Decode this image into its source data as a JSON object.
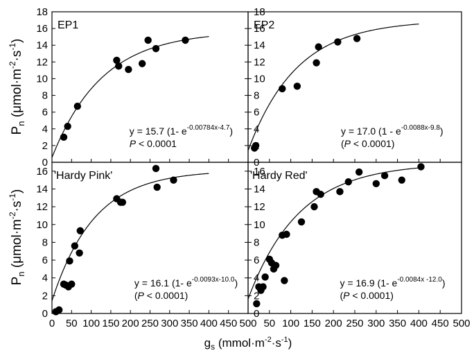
{
  "figure": {
    "xlabel_main": "g",
    "xlabel_sub": "s",
    "xlabel_unit": " (mmol·m",
    "xlabel_sup1": "-2",
    "xlabel_mid": "·s",
    "xlabel_sup2": "-1",
    "xlabel_close": ")",
    "ylabel_top": "P",
    "ylabel_top_sub": "n",
    "ylabel_top_unit": " (μmol·m",
    "ylabel_top_sup1": "-2",
    "ylabel_top_mid": "·s",
    "ylabel_top_sup2": "-1",
    "ylabel_top_close": ")",
    "ylabel_bottom": "P",
    "ylabel_bottom_sub": "n",
    "ylabel_bottom_unit": " (μmol·m",
    "ylabel_bottom_sup1": "-2",
    "ylabel_bottom_mid": "·s",
    "ylabel_bottom_sup2": "-1",
    "ylabel_bottom_close": ")",
    "x_ticks": [
      "0",
      "50",
      "100",
      "150",
      "200",
      "250",
      "300",
      "350",
      "400",
      "450",
      "500"
    ],
    "y_ticks": [
      "0",
      "2",
      "4",
      "6",
      "8",
      "10",
      "12",
      "14",
      "16",
      "18"
    ],
    "y_ticks_lower": [
      "0",
      "2",
      "4",
      "6",
      "8",
      "10",
      "12",
      "14",
      "16"
    ]
  },
  "chart_data": [
    {
      "type": "scatter",
      "panel": "EP1",
      "title": "EP1",
      "xlim": [
        0,
        500
      ],
      "ylim": [
        0,
        18
      ],
      "points": [
        [
          30,
          3.0
        ],
        [
          40,
          4.3
        ],
        [
          65,
          6.7
        ],
        [
          165,
          12.2
        ],
        [
          170,
          11.5
        ],
        [
          195,
          11.1
        ],
        [
          230,
          11.8
        ],
        [
          245,
          14.6
        ],
        [
          265,
          13.6
        ],
        [
          340,
          14.6
        ]
      ],
      "fit": {
        "a": 15.7,
        "b": 0.00784,
        "c": 4.7,
        "x_range": [
          0,
          400
        ]
      },
      "equation_pre": "y = 15.7 (1- e",
      "equation_exp": "-0.00784x-4.7",
      "equation_post": ")",
      "p_label": "P",
      "p_text": " < 0.0001"
    },
    {
      "type": "scatter",
      "panel": "EP2",
      "title": "EP2",
      "xlim": [
        0,
        500
      ],
      "ylim": [
        0,
        18
      ],
      "points": [
        [
          15,
          1.7
        ],
        [
          18,
          2.0
        ],
        [
          80,
          8.8
        ],
        [
          115,
          9.1
        ],
        [
          160,
          11.9
        ],
        [
          165,
          13.8
        ],
        [
          210,
          14.4
        ],
        [
          255,
          14.8
        ]
      ],
      "fit": {
        "a": 17.0,
        "b": 0.0088,
        "c": 9.8,
        "x_range": [
          0,
          400
        ]
      },
      "equation_pre": "y = 17.0 (1 - e",
      "equation_exp": "-0.0088x-9.8",
      "equation_post": ")",
      "p_label": "P",
      "p_text": " < 0.0001)",
      "p_open": "("
    },
    {
      "type": "scatter",
      "panel": "Hardy Pink",
      "title": "'Hardy Pink'",
      "xlim": [
        0,
        500
      ],
      "ylim": [
        0,
        17
      ],
      "points": [
        [
          10,
          0.2
        ],
        [
          18,
          0.4
        ],
        [
          30,
          3.3
        ],
        [
          35,
          3.2
        ],
        [
          42,
          3.0
        ],
        [
          45,
          5.9
        ],
        [
          50,
          3.3
        ],
        [
          58,
          7.6
        ],
        [
          70,
          6.8
        ],
        [
          72,
          9.3
        ],
        [
          165,
          12.9
        ],
        [
          175,
          12.5
        ],
        [
          180,
          12.5
        ],
        [
          265,
          16.3
        ],
        [
          268,
          14.2
        ],
        [
          310,
          15.0
        ]
      ],
      "fit": {
        "a": 16.1,
        "b": 0.0093,
        "c": 10.0,
        "x_range": [
          0,
          400
        ]
      },
      "equation_pre": "y = 16.1 (1- e",
      "equation_exp": "-0.0093x-10.0",
      "equation_post": ")",
      "p_label": "P",
      "p_text": " < 0.0001)",
      "p_open": "("
    },
    {
      "type": "scatter",
      "panel": "Hardy Red",
      "title": "'Hardy Red'",
      "xlim": [
        0,
        500
      ],
      "ylim": [
        0,
        17
      ],
      "points": [
        [
          20,
          1.1
        ],
        [
          25,
          3.0
        ],
        [
          30,
          2.6
        ],
        [
          35,
          3.0
        ],
        [
          40,
          4.1
        ],
        [
          50,
          6.1
        ],
        [
          55,
          5.7
        ],
        [
          60,
          5.0
        ],
        [
          65,
          5.4
        ],
        [
          80,
          8.8
        ],
        [
          85,
          3.7
        ],
        [
          90,
          8.9
        ],
        [
          125,
          10.3
        ],
        [
          155,
          12.0
        ],
        [
          160,
          13.7
        ],
        [
          170,
          13.4
        ],
        [
          215,
          13.7
        ],
        [
          235,
          14.8
        ],
        [
          260,
          15.9
        ],
        [
          300,
          14.6
        ],
        [
          320,
          15.5
        ],
        [
          360,
          15.0
        ],
        [
          405,
          16.5
        ]
      ],
      "fit": {
        "a": 16.9,
        "b": 0.0084,
        "c": 12.0,
        "x_range": [
          0,
          400
        ]
      },
      "equation_pre": "y = 16.9 (1- e",
      "equation_exp": "-0.0084x -12.0",
      "equation_post": ")",
      "p_label": "P",
      "p_text": " < 0.0001)",
      "p_open": "("
    }
  ]
}
